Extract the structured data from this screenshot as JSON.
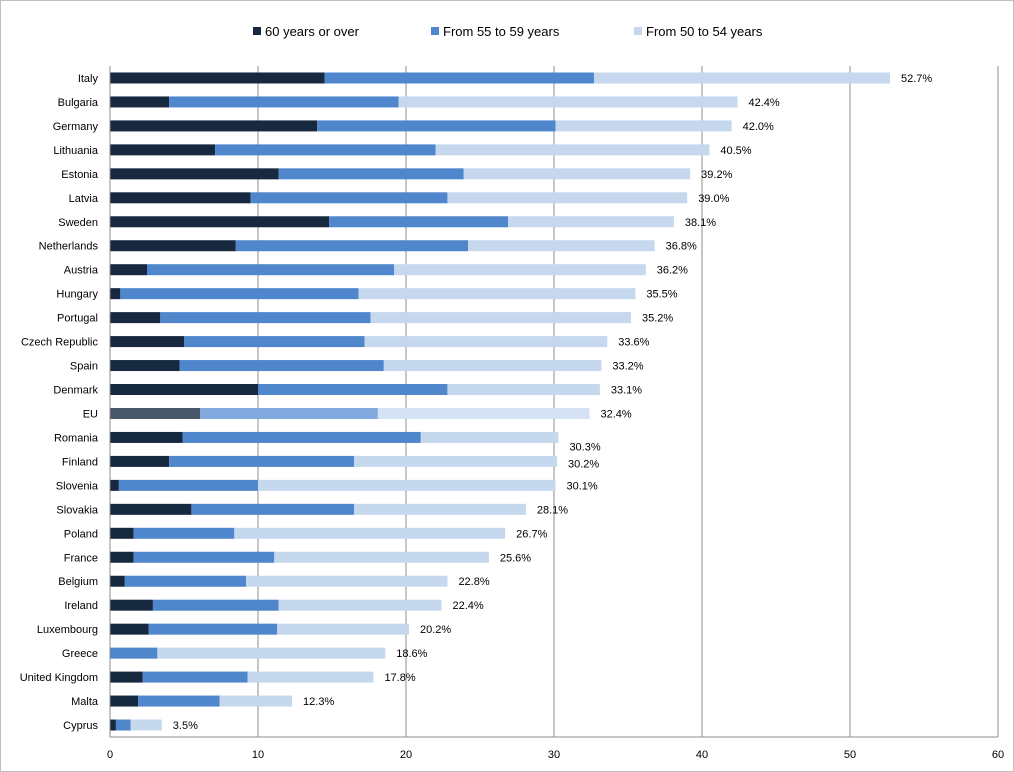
{
  "chart_data": {
    "type": "bar",
    "orientation": "horizontal",
    "stacked": true,
    "title": "",
    "xlabel": "",
    "ylabel": "",
    "xlim": [
      0,
      60
    ],
    "x_ticks": [
      0,
      10,
      20,
      30,
      40,
      50,
      60
    ],
    "grid": "vertical",
    "legend_position": "top",
    "categories": [
      "Italy",
      "Bulgaria",
      "Germany",
      "Lithuania",
      "Estonia",
      "Latvia",
      "Sweden",
      "Netherlands",
      "Austria",
      "Hungary",
      "Portugal",
      "Czech Republic",
      "Spain",
      "Denmark",
      "EU",
      "Romania",
      "Finland",
      "Slovenia",
      "Slovakia",
      "Poland",
      "France",
      "Belgium",
      "Ireland",
      "Luxembourg",
      "Greece",
      "United Kingdom",
      "Malta",
      "Cyprus"
    ],
    "series": [
      {
        "name": "60 years or over",
        "color": "#17293f",
        "values": [
          14.5,
          4.0,
          14.0,
          7.1,
          11.4,
          9.5,
          14.8,
          8.5,
          2.5,
          0.7,
          3.4,
          5.0,
          4.7,
          10.0,
          6.1,
          4.9,
          4.0,
          0.6,
          5.5,
          1.6,
          1.6,
          1.0,
          2.9,
          2.6,
          0.0,
          2.2,
          1.9,
          0.4
        ]
      },
      {
        "name": "From 55 to 59 years",
        "color": "#4f86cc",
        "values": [
          18.2,
          15.5,
          16.1,
          14.9,
          12.5,
          13.3,
          12.1,
          15.7,
          16.7,
          16.1,
          14.2,
          12.2,
          13.8,
          12.8,
          12.0,
          16.1,
          12.5,
          9.4,
          11.0,
          6.8,
          9.5,
          8.2,
          8.5,
          8.7,
          3.2,
          7.1,
          5.5,
          1.0
        ]
      },
      {
        "name": "From 50 to 54 years",
        "color": "#c5d8ee",
        "values": [
          20.0,
          22.9,
          11.9,
          18.5,
          15.3,
          16.2,
          11.2,
          12.6,
          17.0,
          18.7,
          17.6,
          16.4,
          14.7,
          10.3,
          14.3,
          9.3,
          13.7,
          20.1,
          11.6,
          18.3,
          14.5,
          13.6,
          11.0,
          8.9,
          15.4,
          8.5,
          4.9,
          2.1
        ]
      }
    ],
    "highlight_category": {
      "name": "EU",
      "colors": [
        "#475669",
        "#81a9dd",
        "#d4e2f3"
      ]
    },
    "total_labels": [
      "52.7%",
      "42.4%",
      "42.0%",
      "40.5%",
      "39.2%",
      "39.0%",
      "38.1%",
      "36.8%",
      "36.2%",
      "35.5%",
      "35.2%",
      "33.6%",
      "33.2%",
      "33.1%",
      "32.4%",
      "30.3%",
      "30.2%",
      "30.1%",
      "28.1%",
      "26.7%",
      "25.6%",
      "22.8%",
      "22.4%",
      "20.2%",
      "18.6%",
      "17.8%",
      "12.3%",
      "3.5%"
    ]
  }
}
